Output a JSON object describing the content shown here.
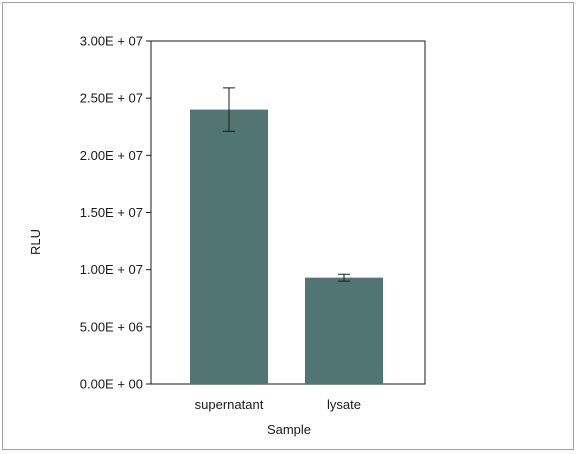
{
  "chart_data": {
    "type": "bar",
    "categories": [
      "supernatant",
      "lysate"
    ],
    "values": [
      24000000,
      9300000
    ],
    "errors": [
      1900000,
      300000
    ],
    "xlabel": "Sample",
    "ylabel": "RLU",
    "ylim": [
      0,
      30000000
    ],
    "yticks": [
      {
        "value": 0,
        "label": "0.00E + 00"
      },
      {
        "value": 5000000,
        "label": "5.00E + 06"
      },
      {
        "value": 10000000,
        "label": "1.00E + 07"
      },
      {
        "value": 15000000,
        "label": "1.50E + 07"
      },
      {
        "value": 20000000,
        "label": "2.00E + 07"
      },
      {
        "value": 25000000,
        "label": "2.50E + 07"
      },
      {
        "value": 30000000,
        "label": "3.00E + 07"
      }
    ],
    "bar_color": "#517572",
    "grid": false,
    "legend": "none"
  }
}
